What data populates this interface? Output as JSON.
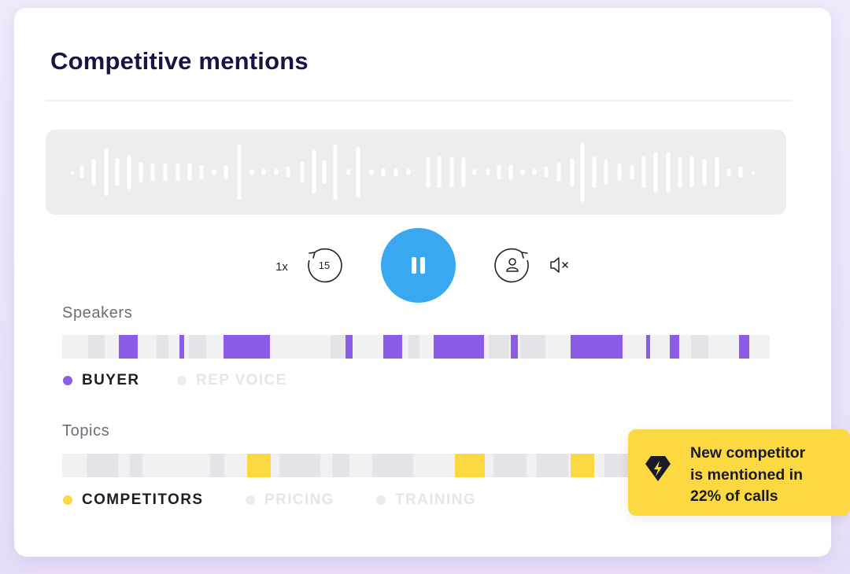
{
  "card": {
    "title": "Competitive mentions"
  },
  "colors": {
    "accent_blue": "#39a8f0",
    "buyer_purple": "#8b5ce6",
    "competitor_yellow": "#fcd940",
    "panel_gray": "#ededf0"
  },
  "player": {
    "speed_label": "1x",
    "skip_back_label": "15",
    "play_state": "playing",
    "pause_icon": "pause-icon",
    "skip_forward_icon": "skip-forward-speaker-icon",
    "mute_icon": "speaker-muted-icon"
  },
  "speakers": {
    "label": "Speakers",
    "legend": [
      {
        "label": "BUYER",
        "active": true,
        "color": "#8b5ce6"
      },
      {
        "label": "REP VOICE",
        "active": false,
        "color": "#e6e6ea"
      }
    ]
  },
  "topics": {
    "label": "Topics",
    "legend": [
      {
        "label": "COMPETITORS",
        "active": true,
        "color": "#fcd940"
      },
      {
        "label": "PRICING",
        "active": false,
        "color": "#e6e6ea"
      },
      {
        "label": "TRAINING",
        "active": false,
        "color": "#e6e6ea"
      }
    ]
  },
  "callout": {
    "icon": "diamond-bolt-icon",
    "lines": [
      "New competitor",
      "is mentioned in",
      "22% of calls"
    ]
  }
}
